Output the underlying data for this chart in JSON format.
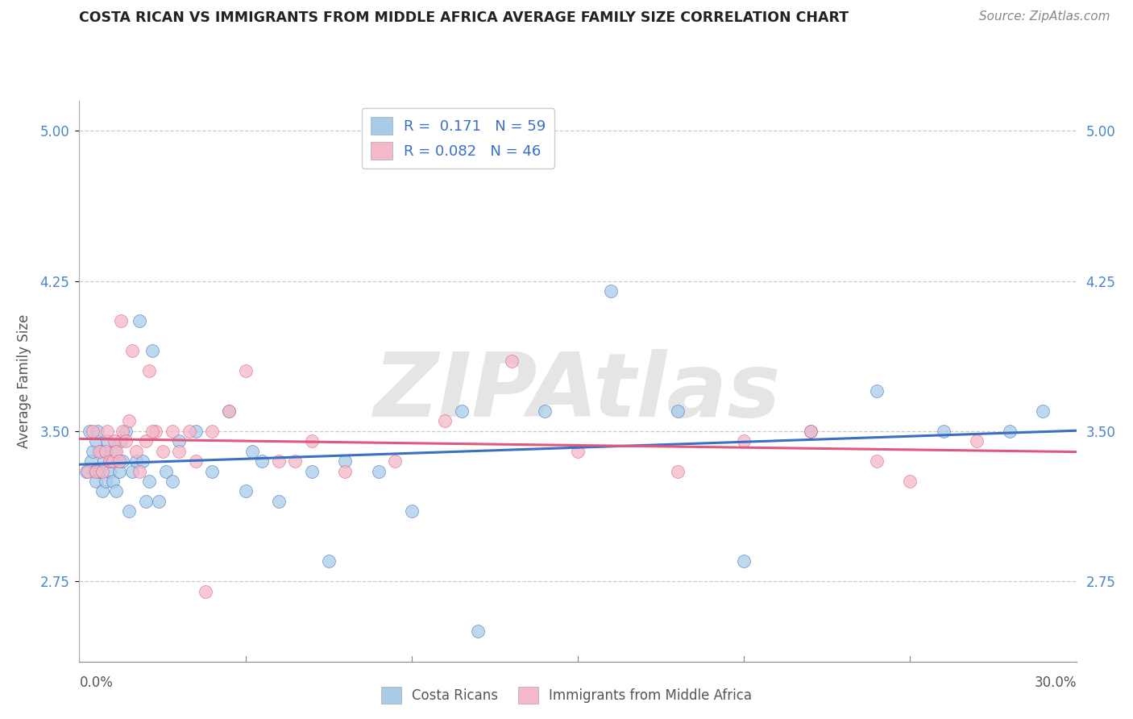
{
  "title": "COSTA RICAN VS IMMIGRANTS FROM MIDDLE AFRICA AVERAGE FAMILY SIZE CORRELATION CHART",
  "source": "Source: ZipAtlas.com",
  "ylabel": "Average Family Size",
  "yticks": [
    2.75,
    3.5,
    4.25,
    5.0
  ],
  "xmin": 0.0,
  "xmax": 30.0,
  "ymin": 2.35,
  "ymax": 5.15,
  "blue_R": 0.171,
  "blue_N": 59,
  "pink_R": 0.082,
  "pink_N": 46,
  "blue_color": "#a8cce8",
  "pink_color": "#f4b8c8",
  "blue_line_color": "#3a6fc4",
  "pink_line_color": "#e05880",
  "legend_text_color": "#3a6fc4",
  "watermark": "ZIPAtlas",
  "blue_x": [
    0.2,
    0.3,
    0.35,
    0.4,
    0.45,
    0.5,
    0.5,
    0.55,
    0.6,
    0.65,
    0.7,
    0.75,
    0.8,
    0.85,
    0.9,
    0.95,
    1.0,
    1.05,
    1.1,
    1.15,
    1.2,
    1.25,
    1.3,
    1.4,
    1.5,
    1.6,
    1.7,
    1.8,
    1.9,
    2.0,
    2.1,
    2.2,
    2.4,
    2.6,
    2.8,
    3.0,
    3.5,
    4.0,
    4.5,
    5.0,
    5.5,
    6.0,
    7.0,
    8.0,
    9.0,
    10.0,
    12.0,
    14.0,
    16.0,
    18.0,
    20.0,
    22.0,
    24.0,
    26.0,
    28.0,
    29.0,
    5.2,
    7.5,
    11.5
  ],
  "blue_y": [
    3.3,
    3.5,
    3.35,
    3.4,
    3.3,
    3.25,
    3.45,
    3.5,
    3.3,
    3.4,
    3.2,
    3.35,
    3.25,
    3.45,
    3.3,
    3.35,
    3.25,
    3.4,
    3.2,
    3.35,
    3.3,
    3.45,
    3.35,
    3.5,
    3.1,
    3.3,
    3.35,
    4.05,
    3.35,
    3.15,
    3.25,
    3.9,
    3.15,
    3.3,
    3.25,
    3.45,
    3.5,
    3.3,
    3.6,
    3.2,
    3.35,
    3.15,
    3.3,
    3.35,
    3.3,
    3.1,
    2.5,
    3.6,
    4.2,
    3.6,
    2.85,
    3.5,
    3.7,
    3.5,
    3.5,
    3.6,
    3.4,
    2.85,
    3.6
  ],
  "pink_x": [
    0.25,
    0.4,
    0.5,
    0.6,
    0.7,
    0.8,
    0.85,
    0.9,
    1.0,
    1.05,
    1.1,
    1.2,
    1.3,
    1.4,
    1.5,
    1.6,
    1.7,
    1.8,
    2.0,
    2.1,
    2.3,
    2.5,
    2.8,
    3.0,
    3.3,
    3.5,
    4.0,
    4.5,
    5.0,
    6.0,
    7.0,
    8.0,
    9.5,
    11.0,
    13.0,
    15.0,
    18.0,
    20.0,
    22.0,
    24.0,
    25.0,
    27.0,
    1.25,
    2.2,
    3.8,
    6.5
  ],
  "pink_y": [
    3.3,
    3.5,
    3.3,
    3.4,
    3.3,
    3.4,
    3.5,
    3.35,
    3.35,
    3.45,
    3.4,
    3.35,
    3.5,
    3.45,
    3.55,
    3.9,
    3.4,
    3.3,
    3.45,
    3.8,
    3.5,
    3.4,
    3.5,
    3.4,
    3.5,
    3.35,
    3.5,
    3.6,
    3.8,
    3.35,
    3.45,
    3.3,
    3.35,
    3.55,
    3.85,
    3.4,
    3.3,
    3.45,
    3.5,
    3.35,
    3.25,
    3.45,
    4.05,
    3.5,
    2.7,
    3.35
  ]
}
